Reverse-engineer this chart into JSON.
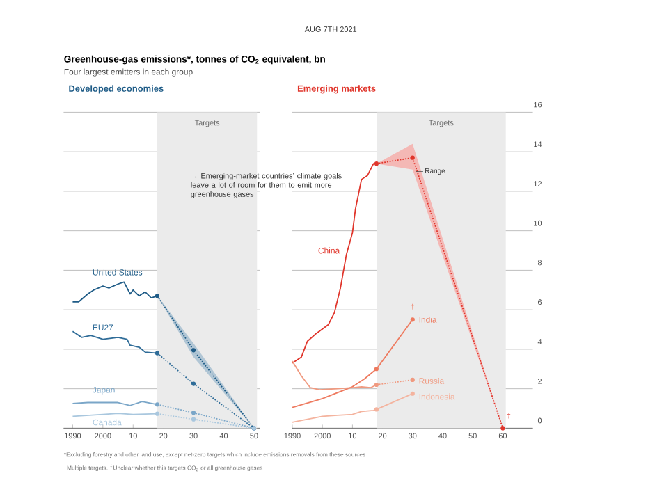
{
  "chart_data": [
    {
      "type": "line",
      "title": "Developed economies",
      "annotations": [
        "AUG 7TH 2021",
        "Greenhouse-gas emissions*, tonnes of CO$_{2}$ equivalent, bn",
        "Four largest emitters in each group",
        "→ Emerging-market countries’ climate goals leave a lot of room for them to emit more greenhouse gases",
        "*Excluding forestry and other land use, except net-zero targets which include emissions removals from these sources",
        "$^{†}$Multiple targets. $^{‡}$Unclear whether this targets CO$_{2}$ or all greenhouse gases"
      ],
      "xlim": [
        1987,
        2052
      ],
      "xticks": [
        1990,
        2000,
        {
          "value": 2010,
          "label": "10"
        },
        {
          "value": 2020,
          "label": "20"
        },
        {
          "value": 2030,
          "label": "30"
        },
        {
          "value": 2040,
          "label": "40"
        },
        {
          "value": 2050,
          "label": "50"
        }
      ],
      "ylim": [
        0,
        16
      ],
      "yticks": [
        0,
        2,
        4,
        6,
        8,
        10,
        12,
        14,
        16
      ],
      "tick_labels": "x",
      "grid": "y",
      "bands": [
        {
          "axis": "x",
          "from": 2018,
          "to": 2051,
          "label": "Targets",
          "color": "#ebebeb"
        }
      ],
      "series": [
        {
          "name": "United States",
          "color": "#1f5c87",
          "x": [
            1990,
            1992,
            1995,
            1997,
            2000,
            2002,
            2005,
            2007,
            2009,
            2010,
            2012,
            2014,
            2016,
            2018
          ],
          "values": [
            6.4,
            6.4,
            6.8,
            7.0,
            7.2,
            7.1,
            7.3,
            7.4,
            6.8,
            7.0,
            6.7,
            6.9,
            6.6,
            6.7
          ]
        },
        {
          "color": "#1f5c87",
          "line_style": "dotted",
          "marker": "circle",
          "x": [
            2018,
            2030,
            2050
          ],
          "values": [
            6.7,
            3.95,
            0
          ],
          "lower": [
            6.7,
            3.6,
            0
          ],
          "upper": [
            6.7,
            4.3,
            0
          ]
        },
        {
          "name": "EU27",
          "color": "#2f6c98",
          "x": [
            1990,
            1993,
            1996,
            2000,
            2005,
            2008,
            2009,
            2012,
            2014,
            2018
          ],
          "values": [
            4.9,
            4.6,
            4.7,
            4.5,
            4.6,
            4.5,
            4.2,
            4.1,
            3.85,
            3.8
          ]
        },
        {
          "color": "#2f6c98",
          "line_style": "dotted",
          "marker": "circle",
          "x": [
            2018,
            2030,
            2050
          ],
          "values": [
            3.8,
            2.25,
            0
          ]
        },
        {
          "name": "Japan",
          "color": "#7aa6c8",
          "x": [
            1990,
            1995,
            2000,
            2005,
            2009,
            2013,
            2018
          ],
          "values": [
            1.25,
            1.3,
            1.3,
            1.3,
            1.15,
            1.35,
            1.2
          ]
        },
        {
          "color": "#7aa6c8",
          "line_style": "dotted",
          "marker": "circle",
          "x": [
            2018,
            2030,
            2050
          ],
          "values": [
            1.2,
            0.78,
            0
          ]
        },
        {
          "name": "Canada",
          "color": "#a9c7de",
          "x": [
            1990,
            2000,
            2005,
            2010,
            2018
          ],
          "values": [
            0.6,
            0.7,
            0.75,
            0.7,
            0.73
          ]
        },
        {
          "color": "#a9c7de",
          "line_style": "dotted",
          "marker": "circle",
          "x": [
            2018,
            2030,
            2050
          ],
          "values": [
            0.73,
            0.45,
            0
          ]
        }
      ]
    },
    {
      "type": "line",
      "title": "Emerging markets",
      "annotations": [
        {
          "text": "Range",
          "x": 2031,
          "y": 13.0
        },
        "†",
        "‡"
      ],
      "xlim": [
        1990,
        2070
      ],
      "xticks": [
        1990,
        2000,
        {
          "value": 2010,
          "label": "10"
        },
        {
          "value": 2020,
          "label": "20"
        },
        {
          "value": 2030,
          "label": "30"
        },
        {
          "value": 2040,
          "label": "40"
        },
        {
          "value": 2050,
          "label": "50"
        },
        {
          "value": 2060,
          "label": "60"
        }
      ],
      "ylim": [
        0,
        16
      ],
      "yticks": [
        0,
        2,
        4,
        6,
        8,
        10,
        12,
        14,
        16
      ],
      "grid": "y",
      "bands": [
        {
          "axis": "x",
          "from": 2018,
          "to": 2061,
          "label": "Targets",
          "color": "#ebebeb"
        }
      ],
      "series": [
        {
          "name": "China",
          "color": "#e0352b",
          "x": [
            1990,
            1993,
            1995,
            1998,
            2002,
            2004,
            2006,
            2008,
            2010,
            2011,
            2013,
            2015,
            2017,
            2018
          ],
          "values": [
            3.3,
            3.6,
            4.4,
            4.8,
            5.25,
            5.85,
            7.1,
            8.8,
            9.9,
            11.1,
            12.6,
            12.8,
            13.4,
            13.4
          ]
        },
        {
          "color": "#e0352b",
          "line_style": "dotted",
          "marker": "circle",
          "x": [
            2018,
            2030,
            2060
          ],
          "values": [
            13.4,
            13.7,
            0
          ],
          "lower": [
            13.4,
            13.1,
            0
          ],
          "upper": [
            13.4,
            14.4,
            0
          ]
        },
        {
          "name": "India",
          "color": "#ee7a5f",
          "x": [
            1990,
            2000,
            2010,
            2014,
            2018
          ],
          "values": [
            1.05,
            1.5,
            2.1,
            2.5,
            3.0
          ]
        },
        {
          "color": "#ee7a5f",
          "marker": "circle",
          "x": [
            2018,
            2030
          ],
          "values": [
            3.0,
            5.5
          ]
        },
        {
          "name": "Russia",
          "color": "#f09a80",
          "x": [
            1990,
            1993,
            1996,
            1999,
            2005,
            2010,
            2013,
            2016,
            2018
          ],
          "values": [
            3.4,
            2.65,
            2.05,
            1.95,
            2.0,
            2.05,
            2.1,
            2.05,
            2.2
          ]
        },
        {
          "color": "#f09a80",
          "line_style": "dotted",
          "marker": "circle",
          "x": [
            2018,
            2030
          ],
          "values": [
            2.2,
            2.45
          ]
        },
        {
          "name": "Indonesia",
          "color": "#f4b39e",
          "x": [
            1990,
            1995,
            2000,
            2005,
            2010,
            2013,
            2017,
            2018
          ],
          "values": [
            0.3,
            0.45,
            0.6,
            0.65,
            0.7,
            0.85,
            0.9,
            0.95
          ]
        },
        {
          "color": "#f4b39e",
          "marker": "circle",
          "x": [
            2018,
            2030
          ],
          "values": [
            0.95,
            1.75
          ]
        }
      ]
    }
  ]
}
